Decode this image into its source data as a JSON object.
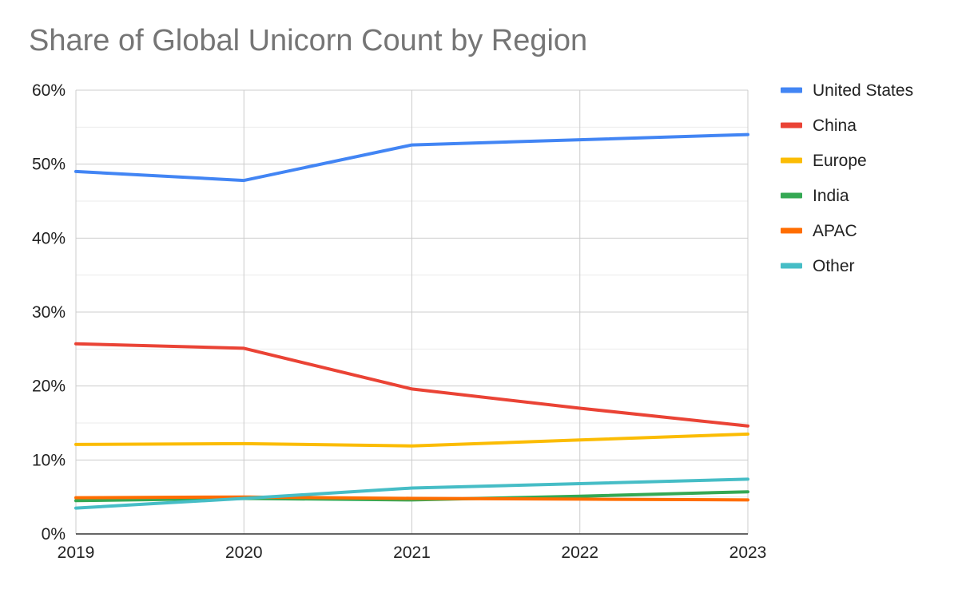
{
  "chart_data": {
    "type": "line",
    "title": "Share of Global Unicorn Count by Region",
    "xlabel": "",
    "ylabel": "",
    "x": [
      "2019",
      "2020",
      "2021",
      "2022",
      "2023"
    ],
    "ylim": [
      0,
      60
    ],
    "yticks": [
      0,
      10,
      20,
      30,
      40,
      50,
      60
    ],
    "ytick_labels": [
      "0%",
      "10%",
      "20%",
      "30%",
      "40%",
      "50%",
      "60%"
    ],
    "grid": true,
    "legend_position": "right",
    "series": [
      {
        "name": "United States",
        "color": "#4285F4",
        "values": [
          49.0,
          47.8,
          52.6,
          53.3,
          54.0
        ]
      },
      {
        "name": "China",
        "color": "#EA4335",
        "values": [
          25.7,
          25.1,
          19.6,
          17.0,
          14.6
        ]
      },
      {
        "name": "Europe",
        "color": "#FBBC04",
        "values": [
          12.1,
          12.2,
          11.9,
          12.7,
          13.5
        ]
      },
      {
        "name": "India",
        "color": "#34A853",
        "values": [
          4.5,
          4.8,
          4.6,
          5.1,
          5.7
        ]
      },
      {
        "name": "APAC",
        "color": "#FF6D01",
        "values": [
          4.9,
          5.0,
          4.8,
          4.7,
          4.6
        ]
      },
      {
        "name": "Other",
        "color": "#46BDC6",
        "values": [
          3.5,
          4.8,
          6.2,
          6.8,
          7.4
        ]
      }
    ]
  }
}
